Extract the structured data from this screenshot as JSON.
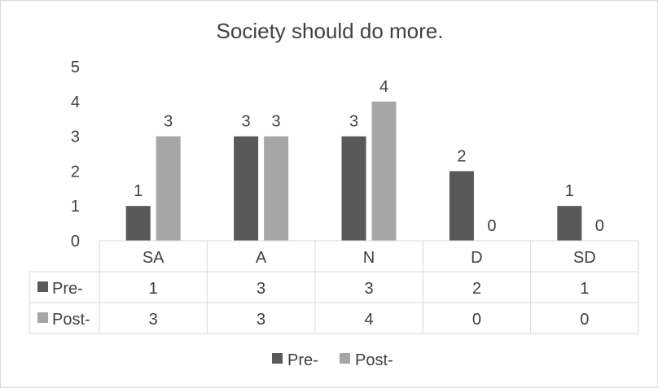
{
  "chart_data": {
    "type": "bar",
    "title": "Society should do more.",
    "categories": [
      "SA",
      "A",
      "N",
      "D",
      "SD"
    ],
    "series": [
      {
        "name": "Pre-",
        "values": [
          1,
          3,
          3,
          2,
          1
        ],
        "color": "#595959"
      },
      {
        "name": "Post-",
        "values": [
          3,
          3,
          4,
          0,
          0
        ],
        "color": "#a6a6a6"
      }
    ],
    "y_ticks": [
      "0",
      "1",
      "2",
      "3",
      "4",
      "5"
    ],
    "ylim": [
      0,
      5
    ],
    "grid": false,
    "data_labels": true,
    "data_table": true,
    "legend_position": "bottom"
  }
}
